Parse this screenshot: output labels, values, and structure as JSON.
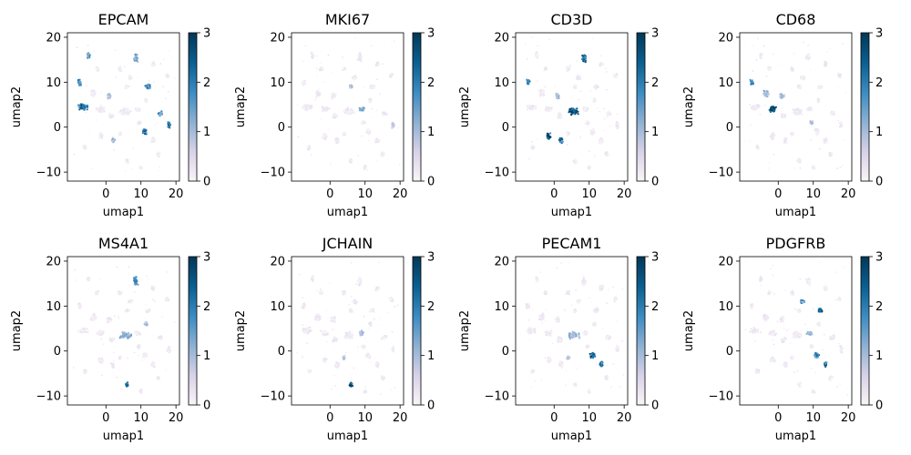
{
  "chart_data": {
    "type": "scatter",
    "description_free": true,
    "colormap": {
      "stops": [
        "#fbf4f9",
        "#d6d2e7",
        "#8db0d3",
        "#3b8bc1",
        "#0a5f8f",
        "#023858"
      ],
      "range": [
        0,
        3
      ],
      "ticks": [
        0,
        1,
        2,
        3
      ]
    },
    "xlim": [
      -11,
      21
    ],
    "ylim": [
      -12,
      21
    ],
    "xticks": [
      0,
      10,
      20
    ],
    "yticks": [
      -10,
      0,
      10,
      20
    ],
    "xlabel": "umap1",
    "ylabel": "umap2",
    "clusters": [
      {
        "cx": -6.5,
        "cy": 4.5,
        "rx": 1.8,
        "ry": 0.9
      },
      {
        "cx": -3.5,
        "cy": 7.5,
        "rx": 1.0,
        "ry": 1.0
      },
      {
        "cx": -1.5,
        "cy": 4.0,
        "rx": 1.4,
        "ry": 0.8
      },
      {
        "cx": 1.0,
        "cy": 7.0,
        "rx": 0.8,
        "ry": 0.8
      },
      {
        "cx": 1.5,
        "cy": 2.5,
        "rx": 0.9,
        "ry": 0.8
      },
      {
        "cx": 5.5,
        "cy": 3.5,
        "rx": 2.0,
        "ry": 1.0
      },
      {
        "cx": 9.0,
        "cy": 4.0,
        "rx": 1.0,
        "ry": 0.6
      },
      {
        "cx": 8.5,
        "cy": 15.5,
        "rx": 0.8,
        "ry": 1.2
      },
      {
        "cx": -1.5,
        "cy": -2.0,
        "rx": 0.8,
        "ry": 0.9
      },
      {
        "cx": 2.0,
        "cy": -3.0,
        "rx": 0.7,
        "ry": 0.9
      },
      {
        "cx": 6.0,
        "cy": -7.5,
        "rx": 0.6,
        "ry": 0.6
      },
      {
        "cx": 18.0,
        "cy": 0.5,
        "rx": 0.5,
        "ry": 1.0
      },
      {
        "cx": 11.0,
        "cy": -1.0,
        "rx": 0.9,
        "ry": 0.8
      },
      {
        "cx": 13.5,
        "cy": -3.0,
        "rx": 0.7,
        "ry": 0.8
      },
      {
        "cx": 7.0,
        "cy": 11.0,
        "rx": 0.8,
        "ry": 0.6
      },
      {
        "cx": 12.0,
        "cy": 9.0,
        "rx": 0.9,
        "ry": 0.6
      },
      {
        "cx": 15.5,
        "cy": 3.0,
        "rx": 0.9,
        "ry": 0.6
      },
      {
        "cx": -7.5,
        "cy": 10.0,
        "rx": 0.6,
        "ry": 0.8
      },
      {
        "cx": -2.5,
        "cy": 13.0,
        "rx": 0.6,
        "ry": 0.6
      },
      {
        "cx": 4.0,
        "cy": 13.0,
        "rx": 0.6,
        "ry": 0.6
      },
      {
        "cx": 13.5,
        "cy": 14.0,
        "rx": 0.7,
        "ry": 0.7
      },
      {
        "cx": -6.0,
        "cy": -4.5,
        "rx": 0.6,
        "ry": 0.6
      },
      {
        "cx": 15.0,
        "cy": -6.0,
        "rx": 0.6,
        "ry": 0.6
      },
      {
        "cx": 10.0,
        "cy": -9.0,
        "rx": 0.5,
        "ry": 0.5
      },
      {
        "cx": 17.5,
        "cy": 11.5,
        "rx": 0.6,
        "ry": 0.6
      },
      {
        "cx": -5.0,
        "cy": 16.0,
        "rx": 0.5,
        "ry": 0.8
      },
      {
        "cx": 6.0,
        "cy": 9.0,
        "rx": 0.6,
        "ry": 0.5
      },
      {
        "cx": 9.5,
        "cy": 1.0,
        "rx": 0.6,
        "ry": 0.5
      },
      {
        "cx": 4.0,
        "cy": -1.5,
        "rx": 0.5,
        "ry": 0.5
      },
      {
        "cx": 11.5,
        "cy": 6.0,
        "rx": 0.5,
        "ry": 0.5
      }
    ],
    "panels": [
      {
        "title": "EPCAM",
        "high": [
          [
            0,
            2.4
          ],
          [
            7,
            1.6
          ],
          [
            11,
            2.6
          ],
          [
            12,
            2.2
          ],
          [
            16,
            1.8
          ],
          [
            17,
            2.0
          ],
          [
            25,
            2.0
          ],
          [
            15,
            2.0
          ],
          [
            9,
            1.2
          ],
          [
            3,
            1.0
          ]
        ]
      },
      {
        "title": "MKI67",
        "high": [
          [
            6,
            1.4
          ],
          [
            26,
            1.0
          ],
          [
            11,
            0.8
          ]
        ]
      },
      {
        "title": "CD3D",
        "high": [
          [
            5,
            3.0
          ],
          [
            7,
            2.8
          ],
          [
            8,
            2.8
          ],
          [
            9,
            2.6
          ],
          [
            17,
            2.0
          ],
          [
            3,
            1.2
          ]
        ]
      },
      {
        "title": "CD68",
        "high": [
          [
            2,
            3.0
          ],
          [
            17,
            2.2
          ],
          [
            1,
            1.4
          ],
          [
            27,
            1.0
          ],
          [
            3,
            1.0
          ]
        ]
      },
      {
        "title": "MS4A1",
        "high": [
          [
            5,
            1.4
          ],
          [
            7,
            2.0
          ],
          [
            10,
            2.6
          ],
          [
            29,
            1.2
          ]
        ]
      },
      {
        "title": "JCHAIN",
        "high": [
          [
            10,
            2.8
          ],
          [
            6,
            1.0
          ],
          [
            28,
            1.0
          ]
        ]
      },
      {
        "title": "PECAM1",
        "high": [
          [
            12,
            2.8
          ],
          [
            13,
            2.4
          ],
          [
            5,
            1.2
          ],
          [
            28,
            1.0
          ]
        ]
      },
      {
        "title": "PDGFRB",
        "high": [
          [
            14,
            2.0
          ],
          [
            15,
            2.6
          ],
          [
            13,
            2.4
          ],
          [
            12,
            2.0
          ],
          [
            6,
            1.2
          ]
        ]
      }
    ]
  }
}
